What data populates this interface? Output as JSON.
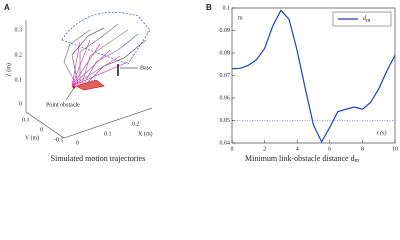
{
  "panel_a": {
    "label": "A",
    "z_axis_label": "Z (m)",
    "y_axis_label": "Y (m)",
    "x_axis_label": "X (m)",
    "z_ticks": [
      "0.3",
      "0.2",
      "0.1",
      "0"
    ],
    "y_ticks": [
      "0.1",
      "0",
      "-0.1"
    ],
    "x_ticks": [
      "0",
      "0.1",
      "0.2"
    ],
    "annotations": [
      "Base",
      "Point obstacle"
    ],
    "caption": "Simulated motion trajectories"
  },
  "chart_data": {
    "type": "line",
    "panel_label": "B",
    "y_axis_label": "m",
    "x_axis_label": "t (s)",
    "caption": "Minimum link-obstacle distance d",
    "caption_subscript": "m",
    "x": [
      0,
      0.5,
      1,
      1.5,
      2,
      2.5,
      3,
      3.5,
      4,
      4.5,
      5,
      5.5,
      6,
      6.5,
      7,
      7.5,
      8,
      8.5,
      9,
      9.5,
      10
    ],
    "series": [
      {
        "name": "d",
        "name_subscript": "m",
        "color": "#1f3fbf",
        "values": [
          0.073,
          0.0732,
          0.0745,
          0.077,
          0.082,
          0.092,
          0.099,
          0.095,
          0.081,
          0.064,
          0.048,
          0.0405,
          0.047,
          0.054,
          0.055,
          0.056,
          0.055,
          0.058,
          0.064,
          0.072,
          0.079
        ]
      }
    ],
    "reference_line": 0.05,
    "xlim": [
      0,
      10
    ],
    "xticks": [
      0,
      2,
      4,
      6,
      8,
      10
    ],
    "ylim": [
      0.04,
      0.1
    ],
    "yticks": [
      0.04,
      0.05,
      0.06,
      0.07,
      0.08,
      0.09,
      0.1
    ],
    "legend": "upper right"
  }
}
